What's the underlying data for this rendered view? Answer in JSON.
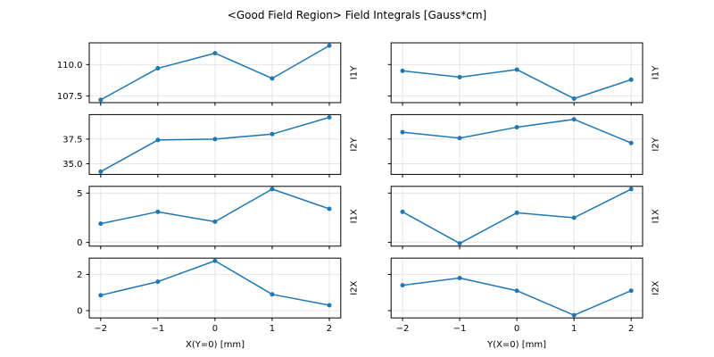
{
  "title": "<Good Field Region> Field Integrals [Gauss*cm]",
  "colors": {
    "line": "#1f77b4",
    "grid": "#e0e0e0",
    "frame": "#000000",
    "text": "#000000",
    "background": "#ffffff"
  },
  "axes": {
    "xlim": [
      -2.2,
      2.2
    ],
    "x_ticks": {
      "values": [
        -2,
        -1,
        0,
        1,
        2
      ],
      "labels": [
        "−2",
        "−1",
        "0",
        "1",
        "2"
      ]
    },
    "col_xlabels": [
      "X(Y=0) [mm]",
      "Y(X=0) [mm]"
    ],
    "grid": true,
    "legend": "none"
  },
  "chart_data": [
    {
      "type": "line",
      "row": 0,
      "col": 0,
      "row_label": "I1Y",
      "x": [
        -2,
        -1,
        0,
        1,
        2
      ],
      "y": [
        107.2,
        109.7,
        110.9,
        108.9,
        111.5
      ],
      "ylim": [
        106.98,
        111.72
      ],
      "yticks": {
        "values": [
          110.0,
          107.5
        ],
        "labels": [
          "110.0",
          "107.5"
        ]
      }
    },
    {
      "type": "line",
      "row": 0,
      "col": 1,
      "row_label": "I1Y",
      "x": [
        -2,
        -1,
        0,
        1,
        2
      ],
      "y": [
        109.5,
        109.0,
        109.6,
        107.3,
        108.8
      ],
      "ylim": [
        106.98,
        111.72
      ],
      "yticks": {
        "values": [
          110.0,
          107.5
        ],
        "labels": [
          "110.0",
          "107.5"
        ]
      }
    },
    {
      "type": "line",
      "row": 1,
      "col": 0,
      "row_label": "I2Y",
      "x": [
        -2,
        -1,
        0,
        1,
        2
      ],
      "y": [
        34.2,
        37.4,
        37.5,
        38.0,
        39.7
      ],
      "ylim": [
        33.92,
        39.98
      ],
      "yticks": {
        "values": [
          37.5,
          35.0
        ],
        "labels": [
          "37.5",
          "35.0"
        ]
      }
    },
    {
      "type": "line",
      "row": 1,
      "col": 1,
      "row_label": "I2Y",
      "x": [
        -2,
        -1,
        0,
        1,
        2
      ],
      "y": [
        38.2,
        37.6,
        38.7,
        39.5,
        37.1
      ],
      "ylim": [
        33.92,
        39.98
      ],
      "yticks": {
        "values": [
          37.5,
          35.0
        ],
        "labels": [
          "37.5",
          "35.0"
        ]
      }
    },
    {
      "type": "line",
      "row": 2,
      "col": 0,
      "row_label": "I1X",
      "x": [
        -2,
        -1,
        0,
        1,
        2
      ],
      "y": [
        1.9,
        3.1,
        2.1,
        5.4,
        3.4
      ],
      "ylim": [
        -0.38,
        5.68
      ],
      "yticks": {
        "values": [
          5,
          0
        ],
        "labels": [
          "5",
          "0"
        ]
      }
    },
    {
      "type": "line",
      "row": 2,
      "col": 1,
      "row_label": "I1X",
      "x": [
        -2,
        -1,
        0,
        1,
        2
      ],
      "y": [
        3.1,
        -0.1,
        3.0,
        2.5,
        5.4
      ],
      "ylim": [
        -0.38,
        5.68
      ],
      "yticks": {
        "values": [
          5,
          0
        ],
        "labels": [
          "5",
          "0"
        ]
      }
    },
    {
      "type": "line",
      "row": 3,
      "col": 0,
      "row_label": "I2X",
      "x": [
        -2,
        -1,
        0,
        1,
        2
      ],
      "y": [
        0.85,
        1.6,
        2.75,
        0.9,
        0.3
      ],
      "ylim": [
        -0.4,
        2.9
      ],
      "yticks": {
        "values": [
          2,
          0
        ],
        "labels": [
          "2",
          "0"
        ]
      }
    },
    {
      "type": "line",
      "row": 3,
      "col": 1,
      "row_label": "I2X",
      "x": [
        -2,
        -1,
        0,
        1,
        2
      ],
      "y": [
        1.4,
        1.8,
        1.1,
        -0.25,
        1.1
      ],
      "ylim": [
        -0.4,
        2.9
      ],
      "yticks": {
        "values": [
          2,
          0
        ],
        "labels": [
          "2",
          "0"
        ]
      }
    }
  ]
}
